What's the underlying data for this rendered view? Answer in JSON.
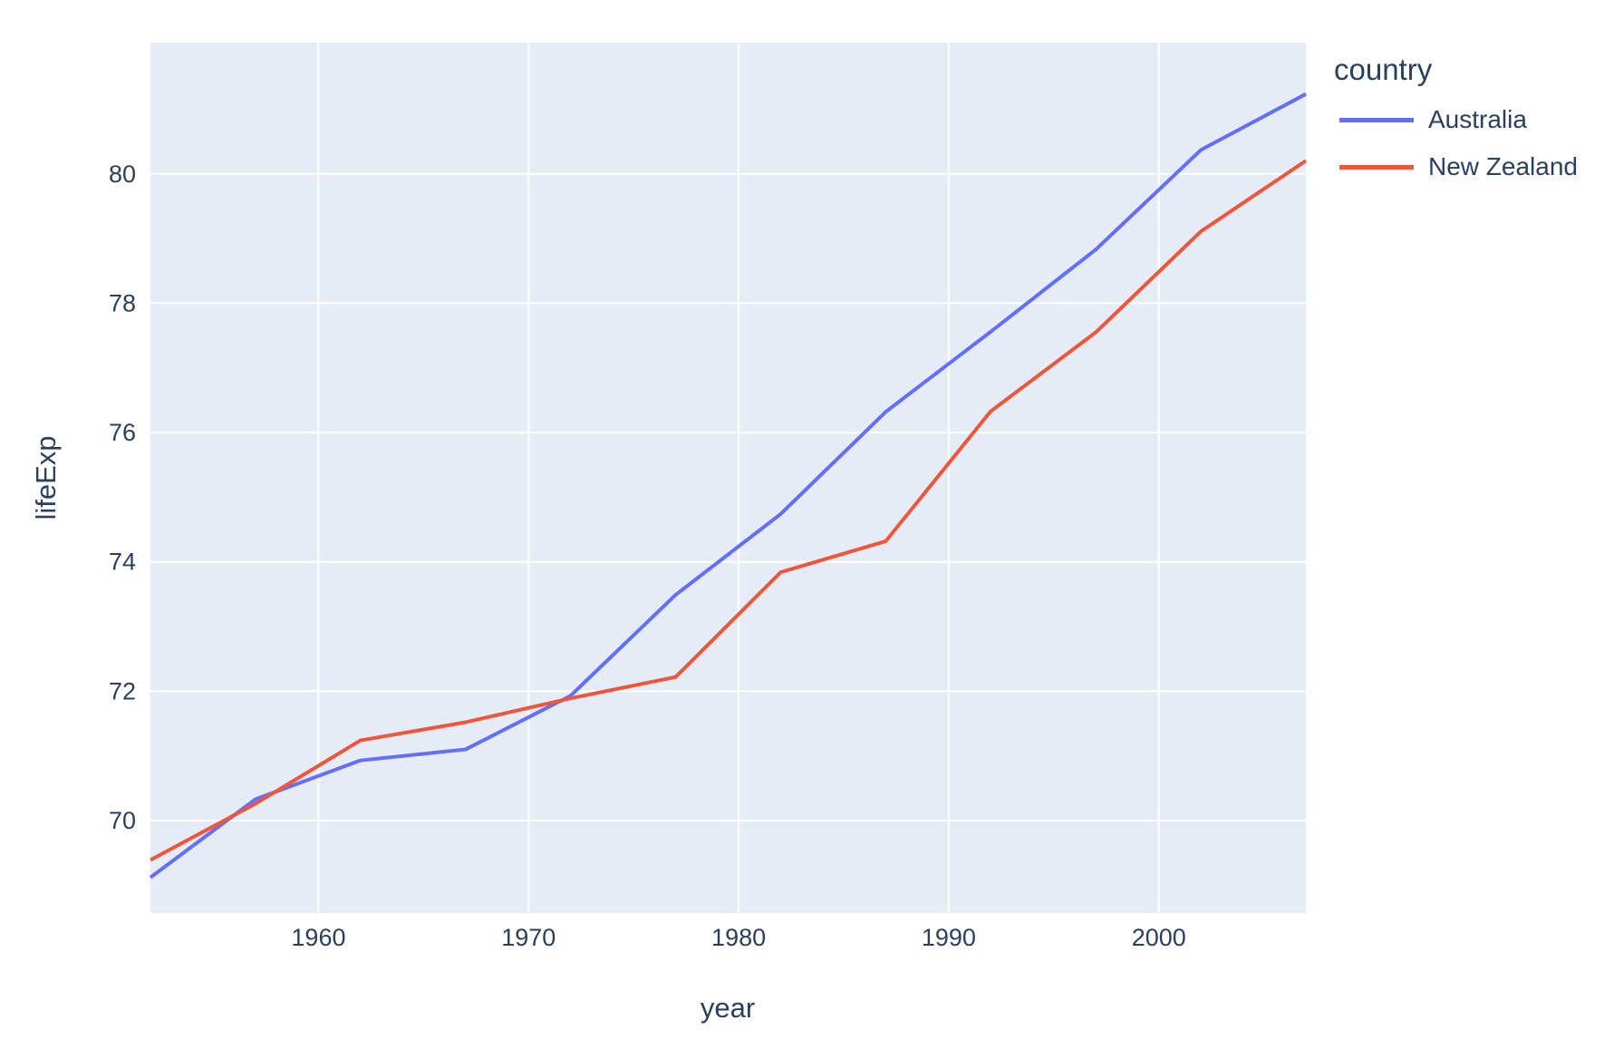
{
  "chart_data": {
    "type": "line",
    "xlabel": "year",
    "ylabel": "lifeExp",
    "legend_title": "country",
    "x": [
      1952,
      1957,
      1962,
      1967,
      1972,
      1977,
      1982,
      1987,
      1992,
      1997,
      2002,
      2007
    ],
    "series": [
      {
        "name": "Australia",
        "color": "#636EFA",
        "values": [
          69.12,
          70.33,
          70.93,
          71.1,
          71.93,
          73.49,
          74.74,
          76.32,
          77.56,
          78.83,
          80.37,
          81.235
        ]
      },
      {
        "name": "New Zealand",
        "color": "#EF553B",
        "values": [
          69.39,
          70.26,
          71.24,
          71.52,
          71.89,
          72.22,
          73.84,
          74.32,
          76.33,
          77.55,
          79.11,
          80.204
        ]
      }
    ],
    "xlim": [
      1952,
      2007
    ],
    "ylim": [
      68.57,
      82.03
    ],
    "xticks": [
      1960,
      1970,
      1980,
      1990,
      2000
    ],
    "yticks": [
      70,
      72,
      74,
      76,
      78,
      80
    ],
    "grid": true,
    "legend_position": "right",
    "colors": {
      "plot_bg": "#E5ECF6",
      "paper_bg": "#FFFFFF",
      "grid": "#FFFFFF",
      "text": "#2A3F5F"
    }
  }
}
